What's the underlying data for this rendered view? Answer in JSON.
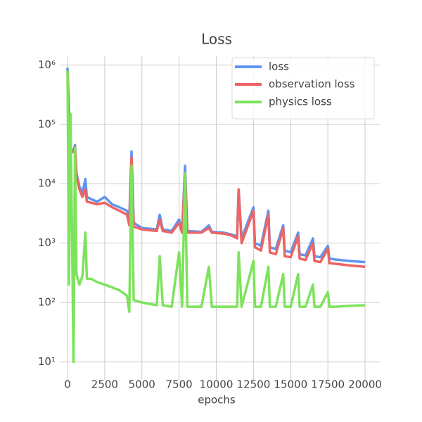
{
  "chart_data": {
    "type": "line",
    "title": "Loss",
    "x_label": "epochs",
    "log_y": true,
    "grid": true,
    "legend": "upper right",
    "xlim": [
      -520,
      20990
    ],
    "ylim": [
      5,
      1400000
    ],
    "xticks": [
      0,
      2500,
      5000,
      7500,
      10000,
      12500,
      15000,
      17500,
      20000
    ],
    "yticks": [
      {
        "value": 10,
        "label": "10¹"
      },
      {
        "value": 100,
        "label": "10²"
      },
      {
        "value": 1000,
        "label": "10³"
      },
      {
        "value": 10000,
        "label": "10⁴"
      },
      {
        "value": 100000,
        "label": "10⁵"
      },
      {
        "value": 1000000,
        "label": "10⁶"
      }
    ],
    "x": [
      0,
      100,
      200,
      300,
      400,
      500,
      600,
      800,
      1000,
      1200,
      1300,
      1600,
      2000,
      2500,
      3000,
      3500,
      4000,
      4150,
      4300,
      4450,
      5000,
      6000,
      6200,
      6400,
      7000,
      7500,
      7700,
      7900,
      8050,
      9000,
      9500,
      9700,
      10500,
      11000,
      11400,
      11500,
      11700,
      12500,
      12600,
      13000,
      13500,
      13600,
      14000,
      14500,
      14600,
      15000,
      15500,
      15600,
      16000,
      16500,
      16600,
      17000,
      17500,
      17600,
      18000,
      19000,
      20000
    ],
    "series": [
      {
        "name": "loss",
        "color": "#5f95f0",
        "values": [
          900000,
          150000,
          40000,
          38000,
          36000,
          45000,
          15000,
          9000,
          7000,
          12000,
          6000,
          5500,
          5000,
          6000,
          4500,
          4000,
          3500,
          2500,
          35000,
          2200,
          1800,
          1700,
          3000,
          1700,
          1600,
          2500,
          1600,
          20000,
          1600,
          1550,
          2000,
          1550,
          1500,
          1400,
          1300,
          8000,
          1200,
          4000,
          1000,
          900,
          3500,
          850,
          800,
          2000,
          750,
          700,
          1500,
          650,
          620,
          1200,
          600,
          580,
          900,
          550,
          530,
          500,
          480
        ]
      },
      {
        "name": "observation loss",
        "color": "#ed6464",
        "values": [
          700000,
          120000,
          38000,
          36000,
          34000,
          42000,
          14000,
          8000,
          6000,
          8000,
          5000,
          4800,
          4500,
          4800,
          4000,
          3500,
          3000,
          2000,
          28000,
          1900,
          1700,
          1600,
          2500,
          1600,
          1500,
          2200,
          1500,
          15000,
          1500,
          1500,
          1800,
          1500,
          1450,
          1350,
          1200,
          8000,
          1000,
          3500,
          850,
          750,
          3000,
          700,
          650,
          1800,
          600,
          580,
          1300,
          550,
          520,
          1000,
          500,
          480,
          800,
          460,
          450,
          420,
          400
        ]
      },
      {
        "name": "physics loss",
        "color": "#7de35c",
        "values": [
          800000,
          200,
          150000,
          2000,
          10,
          40000,
          300,
          200,
          280,
          1500,
          250,
          250,
          220,
          200,
          180,
          160,
          130,
          70,
          20000,
          110,
          100,
          90,
          600,
          90,
          85,
          700,
          85,
          15000,
          85,
          85,
          400,
          85,
          85,
          85,
          85,
          700,
          85,
          500,
          85,
          85,
          400,
          85,
          85,
          300,
          85,
          85,
          300,
          85,
          85,
          200,
          85,
          85,
          150,
          85,
          85,
          88,
          90
        ]
      }
    ]
  }
}
